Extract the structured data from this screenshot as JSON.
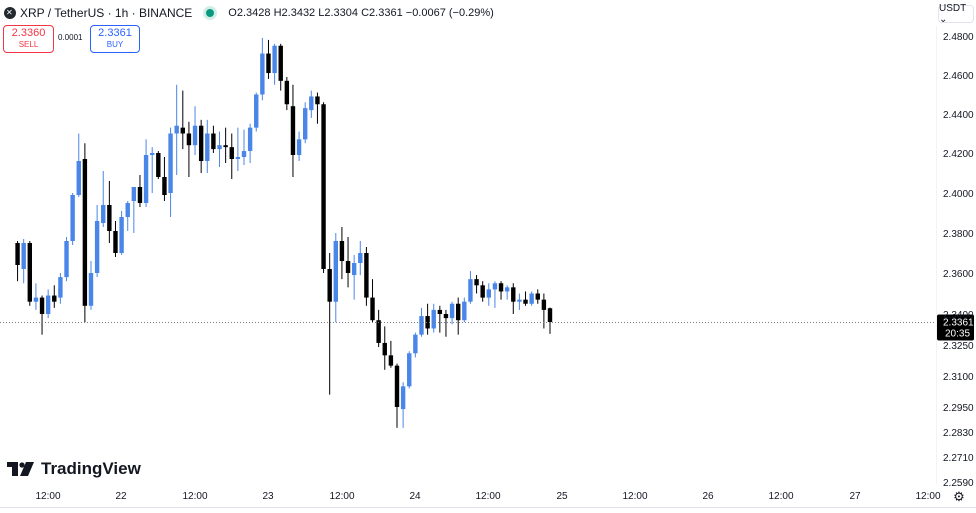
{
  "header": {
    "symbol_title": "XRP / TetherUS · 1h · BINANCE",
    "ohlc": {
      "o_label": "O",
      "o": "2.3428",
      "h_label": "H",
      "h": "2.3432",
      "l_label": "L",
      "l": "2.3304",
      "c_label": "C",
      "c": "2.3361",
      "change": "−0.0067 (−0.29%)"
    }
  },
  "trade": {
    "sell_price": "2.3360",
    "sell_label": "SELL",
    "spread": "0.0001",
    "buy_price": "2.3361",
    "buy_label": "BUY"
  },
  "currency": "USDT ⌄",
  "logo_text": "TradingView",
  "colors": {
    "up": "#4a86e8",
    "down": "#000000",
    "price_line": "#787b86",
    "price_tag": "#000000"
  },
  "chart_data": {
    "type": "candlestick",
    "timeframe": "1h",
    "y_ticks": [
      "2.4800",
      "2.4600",
      "2.4400",
      "2.4200",
      "2.4000",
      "2.3800",
      "2.3600",
      "2.3400",
      "2.3250",
      "2.3100",
      "2.2950",
      "2.2830",
      "2.2710",
      "2.2590"
    ],
    "x_ticks": [
      "12:00",
      "22",
      "12:00",
      "23",
      "12:00",
      "24",
      "12:00",
      "25",
      "12:00",
      "26",
      "12:00",
      "27",
      "12:00"
    ],
    "current_price": "2.3361",
    "countdown": "20:35",
    "candles": [
      [
        2.375,
        2.376,
        2.356,
        2.364
      ],
      [
        2.362,
        2.377,
        2.355,
        2.375
      ],
      [
        2.375,
        2.376,
        2.344,
        2.346
      ],
      [
        2.346,
        2.355,
        2.342,
        2.348
      ],
      [
        2.348,
        2.349,
        2.33,
        2.34
      ],
      [
        2.34,
        2.352,
        2.338,
        2.349
      ],
      [
        2.349,
        2.354,
        2.343,
        2.346
      ],
      [
        2.348,
        2.36,
        2.345,
        2.358
      ],
      [
        2.358,
        2.378,
        2.356,
        2.376
      ],
      [
        2.376,
        2.4,
        2.374,
        2.399
      ],
      [
        2.399,
        2.43,
        2.398,
        2.416
      ],
      [
        2.417,
        2.425,
        2.336,
        2.344
      ],
      [
        2.344,
        2.366,
        2.342,
        2.36
      ],
      [
        2.36,
        2.394,
        2.358,
        2.386
      ],
      [
        2.385,
        2.411,
        2.383,
        2.394
      ],
      [
        2.394,
        2.406,
        2.375,
        2.381
      ],
      [
        2.381,
        2.386,
        2.368,
        2.37
      ],
      [
        2.37,
        2.391,
        2.369,
        2.388
      ],
      [
        2.388,
        2.396,
        2.381,
        2.395
      ],
      [
        2.396,
        2.403,
        2.38,
        2.403
      ],
      [
        2.403,
        2.409,
        2.393,
        2.395
      ],
      [
        2.395,
        2.427,
        2.393,
        2.419
      ],
      [
        2.419,
        2.423,
        2.4,
        2.42
      ],
      [
        2.42,
        2.421,
        2.407,
        2.408
      ],
      [
        2.408,
        2.418,
        2.396,
        2.399
      ],
      [
        2.4,
        2.433,
        2.388,
        2.43
      ],
      [
        2.43,
        2.455,
        2.409,
        2.434
      ],
      [
        2.433,
        2.452,
        2.422,
        2.43
      ],
      [
        2.43,
        2.436,
        2.408,
        2.424
      ],
      [
        2.424,
        2.444,
        2.419,
        2.434
      ],
      [
        2.434,
        2.437,
        2.41,
        2.416
      ],
      [
        2.416,
        2.437,
        2.41,
        2.43
      ],
      [
        2.43,
        2.434,
        2.42,
        2.422
      ],
      [
        2.422,
        2.431,
        2.413,
        2.424
      ],
      [
        2.424,
        2.433,
        2.415,
        2.423
      ],
      [
        2.423,
        2.43,
        2.407,
        2.417
      ],
      [
        2.417,
        2.433,
        2.411,
        2.418
      ],
      [
        2.418,
        2.432,
        2.414,
        2.421
      ],
      [
        2.421,
        2.435,
        2.415,
        2.433
      ],
      [
        2.433,
        2.451,
        2.431,
        2.45
      ],
      [
        2.45,
        2.479,
        2.447,
        2.471
      ],
      [
        2.471,
        2.478,
        2.458,
        2.461
      ],
      [
        2.461,
        2.476,
        2.455,
        2.475
      ],
      [
        2.475,
        2.476,
        2.452,
        2.457
      ],
      [
        2.457,
        2.459,
        2.442,
        2.445
      ],
      [
        2.444,
        2.455,
        2.408,
        2.419
      ],
      [
        2.419,
        2.431,
        2.416,
        2.427
      ],
      [
        2.427,
        2.446,
        2.425,
        2.443
      ],
      [
        2.442,
        2.452,
        2.438,
        2.449
      ],
      [
        2.449,
        2.451,
        2.435,
        2.445
      ],
      [
        2.445,
        2.446,
        2.36,
        2.362
      ],
      [
        2.362,
        2.37,
        2.301,
        2.346
      ],
      [
        2.346,
        2.38,
        2.336,
        2.376
      ],
      [
        2.376,
        2.383,
        2.357,
        2.366
      ],
      [
        2.366,
        2.378,
        2.353,
        2.36
      ],
      [
        2.359,
        2.369,
        2.347,
        2.365
      ],
      [
        2.365,
        2.376,
        2.359,
        2.37
      ],
      [
        2.37,
        2.373,
        2.344,
        2.348
      ],
      [
        2.348,
        2.357,
        2.336,
        2.337
      ],
      [
        2.337,
        2.342,
        2.324,
        2.326
      ],
      [
        2.326,
        2.334,
        2.313,
        2.32
      ],
      [
        2.32,
        2.327,
        2.314,
        2.315
      ],
      [
        2.315,
        2.316,
        2.285,
        2.295
      ],
      [
        2.294,
        2.307,
        2.285,
        2.305
      ],
      [
        2.305,
        2.322,
        2.304,
        2.321
      ],
      [
        2.321,
        2.331,
        2.319,
        2.33
      ],
      [
        2.33,
        2.343,
        2.329,
        2.339
      ],
      [
        2.339,
        2.345,
        2.33,
        2.333
      ],
      [
        2.333,
        2.345,
        2.331,
        2.342
      ],
      [
        2.342,
        2.344,
        2.331,
        2.34
      ],
      [
        2.34,
        2.342,
        2.329,
        2.338
      ],
      [
        2.338,
        2.346,
        2.335,
        2.345
      ],
      [
        2.345,
        2.348,
        2.33,
        2.337
      ],
      [
        2.337,
        2.348,
        2.336,
        2.346
      ],
      [
        2.346,
        2.361,
        2.345,
        2.357
      ],
      [
        2.357,
        2.359,
        2.35,
        2.354
      ],
      [
        2.354,
        2.356,
        2.346,
        2.348
      ],
      [
        2.348,
        2.355,
        2.344,
        2.352
      ],
      [
        2.352,
        2.356,
        2.343,
        2.355
      ],
      [
        2.355,
        2.356,
        2.347,
        2.351
      ],
      [
        2.351,
        2.354,
        2.347,
        2.353
      ],
      [
        2.353,
        2.355,
        2.34,
        2.346
      ],
      [
        2.346,
        2.35,
        2.342,
        2.347
      ],
      [
        2.347,
        2.351,
        2.344,
        2.345
      ],
      [
        2.345,
        2.351,
        2.344,
        2.35
      ],
      [
        2.35,
        2.352,
        2.345,
        2.347
      ],
      [
        2.347,
        2.35,
        2.333,
        2.342
      ],
      [
        2.3428,
        2.3432,
        2.3304,
        2.3361
      ]
    ]
  }
}
